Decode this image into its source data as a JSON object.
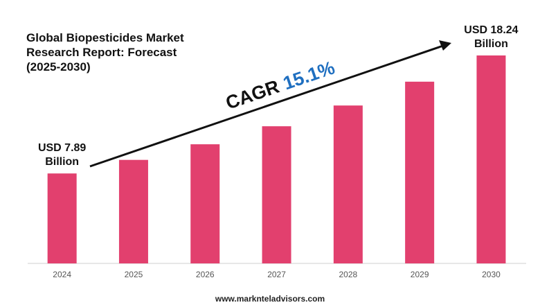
{
  "chart_data": {
    "type": "bar",
    "title": "Global Biopesticides Market Research Report: Forecast (2025-2030)",
    "categories": [
      "2024",
      "2025",
      "2026",
      "2027",
      "2028",
      "2029",
      "2030"
    ],
    "values": [
      7.89,
      9.08,
      10.45,
      12.03,
      13.85,
      15.94,
      18.24
    ],
    "value_labels": [
      "USD 7.89 Billion",
      null,
      null,
      null,
      null,
      null,
      "USD 18.24 Billion"
    ],
    "color": "#e2406e",
    "annotation": {
      "label": "CAGR",
      "value": "15.1%"
    },
    "footer": "www.marknteladvisors.com"
  }
}
